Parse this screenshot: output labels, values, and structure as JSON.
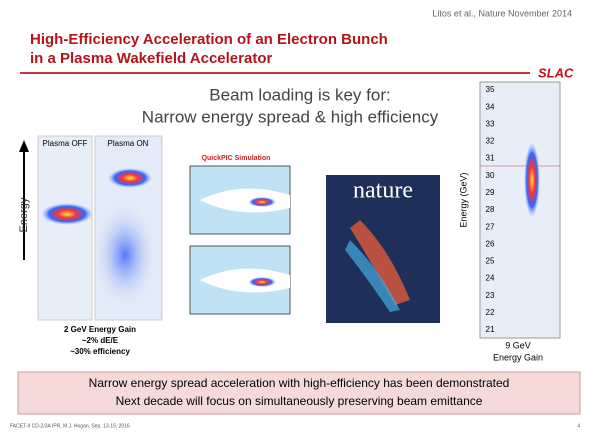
{
  "header": {
    "citation": "Litos et al., Nature November 2014",
    "title_lines": [
      "High-Efficiency Acceleration of an Electron Bunch",
      "in a Plasma Wakefield Accelerator"
    ],
    "logo": "SLAC"
  },
  "subtitle_lines": [
    "Beam loading is key for:",
    "Narrow energy spread & high efficiency"
  ],
  "spectra": {
    "axis_label": "Energy",
    "panels": [
      "Plasma OFF",
      "Plasma ON"
    ],
    "caption_lines": [
      "2 GeV Energy Gain",
      "~2% dE/E",
      "~30% efficiency"
    ]
  },
  "simulation": {
    "title": "QuickPIC Simulation"
  },
  "cover": {
    "title": "nature"
  },
  "spectrometer": {
    "axis_label": "Energy (GeV)",
    "ticks": [
      "35",
      "34",
      "33",
      "32",
      "31",
      "30",
      "29",
      "28",
      "27",
      "26",
      "25",
      "24",
      "23",
      "22",
      "21"
    ],
    "caption_lines": [
      "9 GeV",
      "Energy Gain"
    ]
  },
  "conclusion": [
    "Narrow energy spread acceleration with high-efficiency has been demonstrated",
    "Next decade will focus on simultaneously preserving beam emittance"
  ],
  "footer": {
    "source": "FACET-II CD-2/3A IPR, M.J. Hogan, Sep. 13-15, 2016",
    "page": "4"
  }
}
